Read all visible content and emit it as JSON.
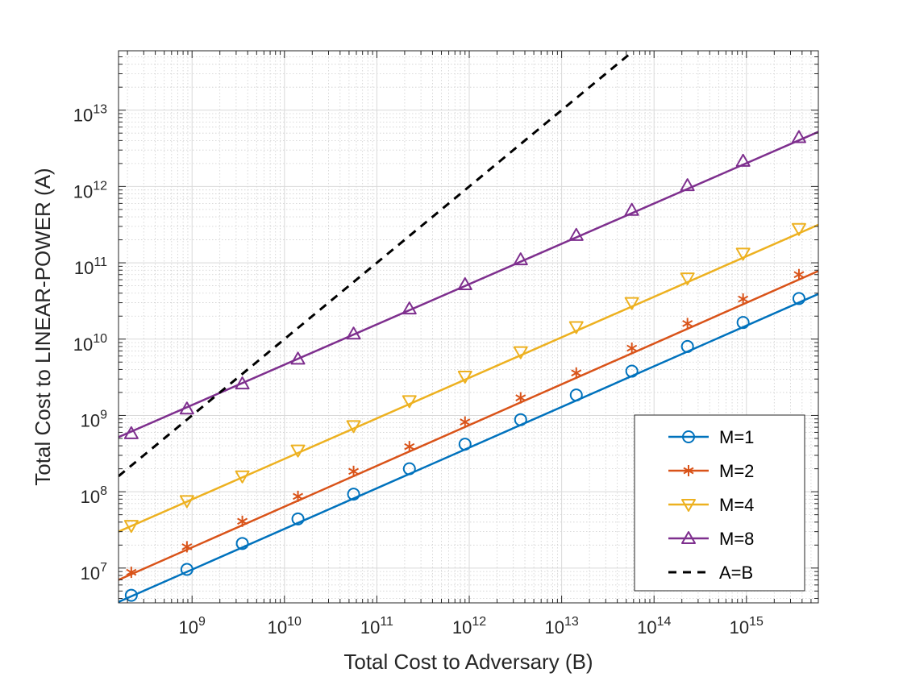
{
  "chart_data": {
    "type": "line",
    "scale": "log-log",
    "title": "",
    "xlabel": "Total Cost to Adversary (B)",
    "ylabel": "Total Cost to LINEAR-POWER (A)",
    "xlim": [
      160000000.0,
      6000000000000000.0
    ],
    "ylim": [
      3500000.0,
      60000000000000.0
    ],
    "x_ticks": [
      {
        "value": 1000000000.0,
        "exp": "9"
      },
      {
        "value": 10000000000.0,
        "exp": "10"
      },
      {
        "value": 100000000000.0,
        "exp": "11"
      },
      {
        "value": 1000000000000.0,
        "exp": "12"
      },
      {
        "value": 10000000000000.0,
        "exp": "13"
      },
      {
        "value": 100000000000000.0,
        "exp": "14"
      },
      {
        "value": 1000000000000000.0,
        "exp": "15"
      }
    ],
    "y_ticks": [
      {
        "value": 10000000.0,
        "exp": "7"
      },
      {
        "value": 100000000.0,
        "exp": "8"
      },
      {
        "value": 1000000000.0,
        "exp": "9"
      },
      {
        "value": 10000000000.0,
        "exp": "10"
      },
      {
        "value": 100000000000.0,
        "exp": "11"
      },
      {
        "value": 1000000000000.0,
        "exp": "12"
      },
      {
        "value": 10000000000000.0,
        "exp": "13"
      }
    ],
    "tick_base": "10",
    "grid": true,
    "legend_position": "bottom-right",
    "x_marker_values": [
      220000000.0,
      880000000.0,
      3500000000.0,
      14000000000.0,
      56000000000.0,
      225000000000.0,
      900000000000.0,
      3600000000000.0,
      14400000000000.0,
      57500000000000.0,
      230000000000000.0,
      920000000000000.0,
      3700000000000000.0
    ],
    "series": [
      {
        "name": "M=1",
        "color": "#0072BD",
        "marker": "circle",
        "x_range": [
          160000000.0,
          6000000000000000.0
        ],
        "y_range": [
          3600000.0,
          39000000000.0
        ],
        "y_marker_values": [
          4400000.0,
          9600000.0,
          21000000.0,
          44000000.0,
          93000000.0,
          200000000.0,
          420000000.0,
          880000000.0,
          1850000000.0,
          3800000000.0,
          8000000000.0,
          16500000000.0,
          34000000000.0
        ]
      },
      {
        "name": "M=2",
        "color": "#D95319",
        "marker": "asterisk",
        "x_range": [
          160000000.0,
          6000000000000000.0
        ],
        "y_range": [
          7000000.0,
          78000000000.0
        ],
        "y_marker_values": [
          8800000.0,
          19000000.0,
          41000000.0,
          87000000.0,
          185000000.0,
          390000000.0,
          820000000.0,
          1700000000.0,
          3600000000.0,
          7600000000.0,
          16000000000.0,
          33500000000.0,
          70000000000.0
        ]
      },
      {
        "name": "M=4",
        "color": "#EDB120",
        "marker": "triangle-down",
        "x_range": [
          160000000.0,
          6000000000000000.0
        ],
        "y_range": [
          30000000.0,
          315000000000.0
        ],
        "y_marker_values": [
          36000000.0,
          76000000.0,
          160000000.0,
          350000000.0,
          730000000.0,
          1550000000.0,
          3250000000.0,
          6800000000.0,
          14500000000.0,
          30000000000.0,
          63000000000.0,
          133000000000.0,
          280000000000.0
        ]
      },
      {
        "name": "M=8",
        "color": "#7E2F8E",
        "marker": "triangle-up",
        "x_range": [
          160000000.0,
          6000000000000000.0
        ],
        "y_range": [
          520000000.0,
          5200000000000.0
        ],
        "y_marker_values": [
          580000000.0,
          1220000000.0,
          2600000000.0,
          5500000000.0,
          11700000000.0,
          25000000000.0,
          52000000000.0,
          110000000000.0,
          230000000000.0,
          490000000000.0,
          1030000000000.0,
          2150000000000.0,
          4400000000000.0
        ]
      },
      {
        "name": "A=B",
        "color": "#000000",
        "marker": "none",
        "dashed": true,
        "x_range": [
          160000000.0,
          57000000000000.0
        ],
        "y_range": [
          160000000.0,
          57000000000000.0
        ],
        "y_marker_values": []
      }
    ]
  }
}
